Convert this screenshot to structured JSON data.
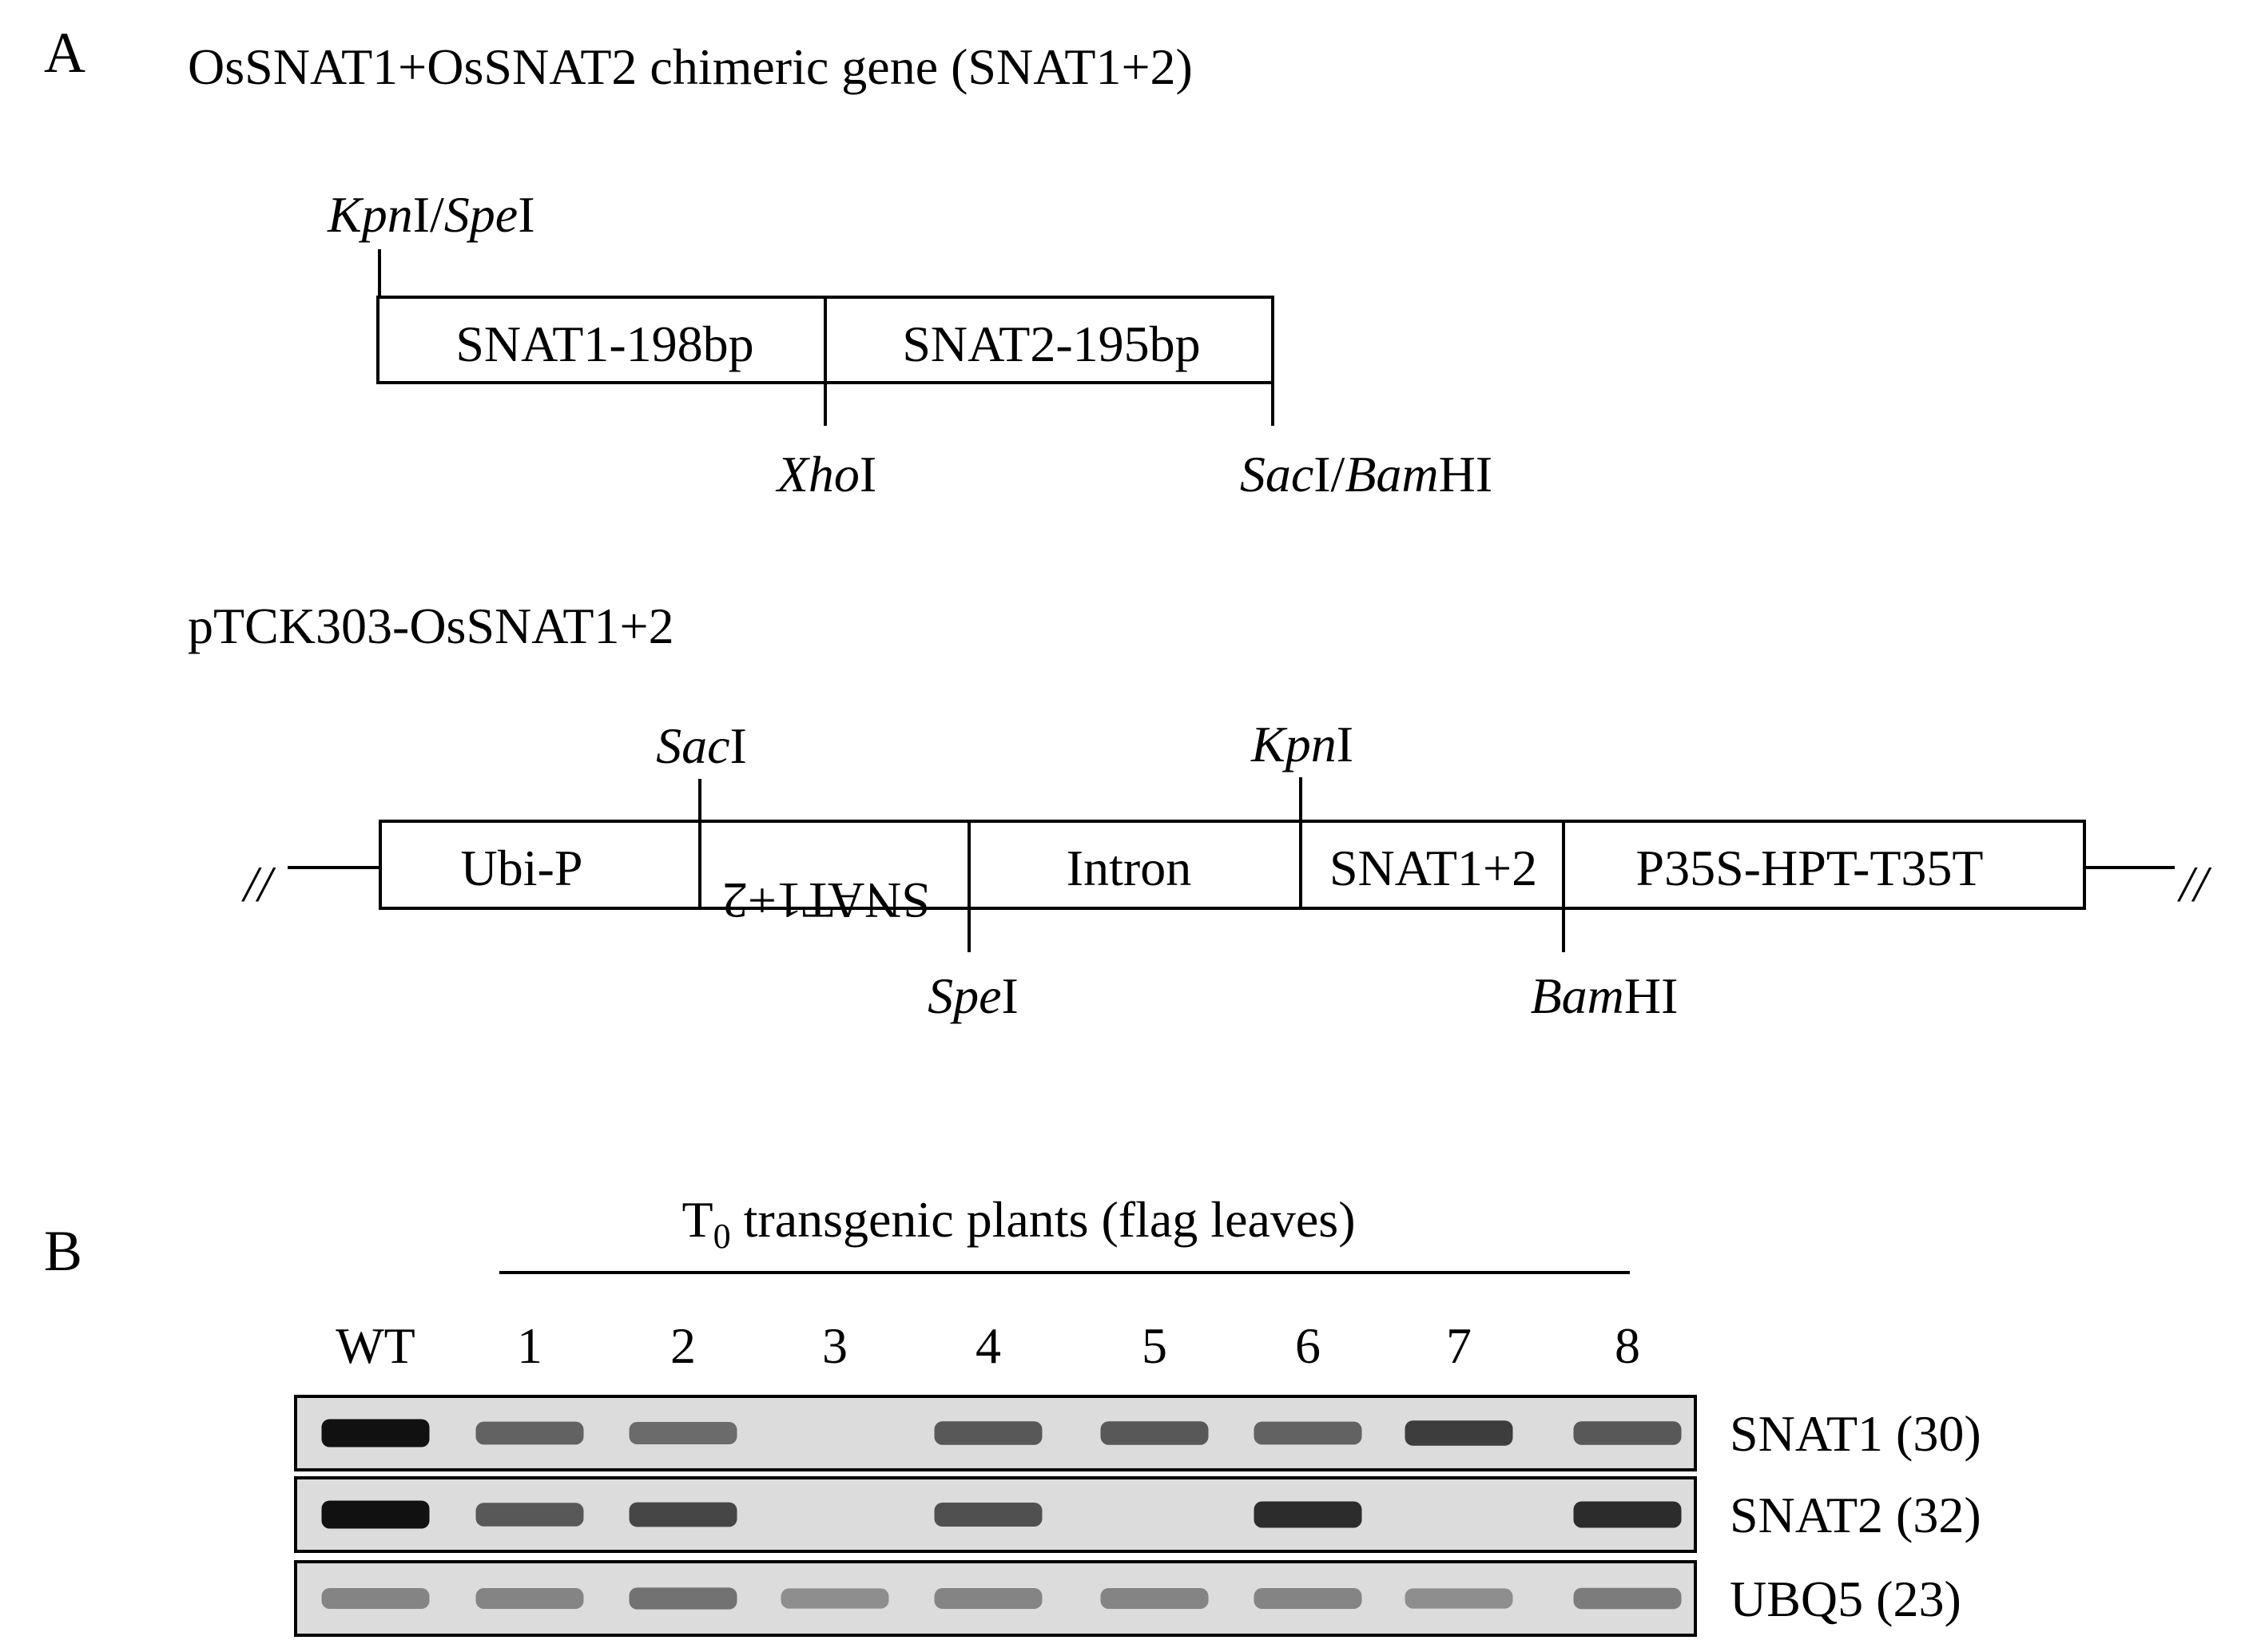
{
  "panel_a": {
    "letter": "A",
    "chimeric_title": "OsSNAT1+OsSNAT2 chimeric gene (SNAT1+2)",
    "insert_segments": [
      "SNAT1-198bp",
      "SNAT2-195bp"
    ],
    "insert_sites": {
      "left": {
        "ital1": "Kpn",
        "rom1": "I/",
        "ital2": "Spe",
        "rom2": "I"
      },
      "middle": {
        "ital1": "Xho",
        "rom1": "I"
      },
      "right": {
        "ital1": "Sac",
        "rom1": "I/",
        "ital2": "Bam",
        "rom2": "HI"
      }
    },
    "vector_title": "pTCK303-OsSNAT1+2",
    "vector_segments": [
      "Ubi-P",
      "SNAT1+2",
      "Intron",
      "SNAT1+2",
      "P35S-HPT-T35T"
    ],
    "vector_break_symbol": "//",
    "vector_sites": {
      "sac": {
        "ital": "Sac",
        "rom": "I"
      },
      "kpn": {
        "ital": "Kpn",
        "rom": "I"
      },
      "spe": {
        "ital": "Spe",
        "rom": "I"
      },
      "bam": {
        "ital": "Bam",
        "rom": "HI"
      }
    }
  },
  "panel_b": {
    "letter": "B",
    "header_main": "T",
    "header_sub": "0",
    "header_rest": " transgenic plants (flag leaves)",
    "lanes": [
      "WT",
      "1",
      "2",
      "3",
      "4",
      "5",
      "6",
      "7",
      "8"
    ],
    "gels": [
      {
        "label": "SNAT1 (30)",
        "band_intensity": [
          1.0,
          0.55,
          0.5,
          0.0,
          0.6,
          0.6,
          0.55,
          0.75,
          0.6
        ]
      },
      {
        "label": "SNAT2 (32)",
        "band_intensity": [
          1.0,
          0.6,
          0.7,
          0.0,
          0.65,
          0.0,
          0.85,
          0.0,
          0.85
        ]
      },
      {
        "label": "UBQ5 (23)",
        "band_intensity": [
          0.35,
          0.35,
          0.45,
          0.3,
          0.35,
          0.35,
          0.35,
          0.3,
          0.4
        ]
      }
    ]
  },
  "colors": {
    "band": "#111111",
    "gel_background": "#dcdcdc"
  }
}
